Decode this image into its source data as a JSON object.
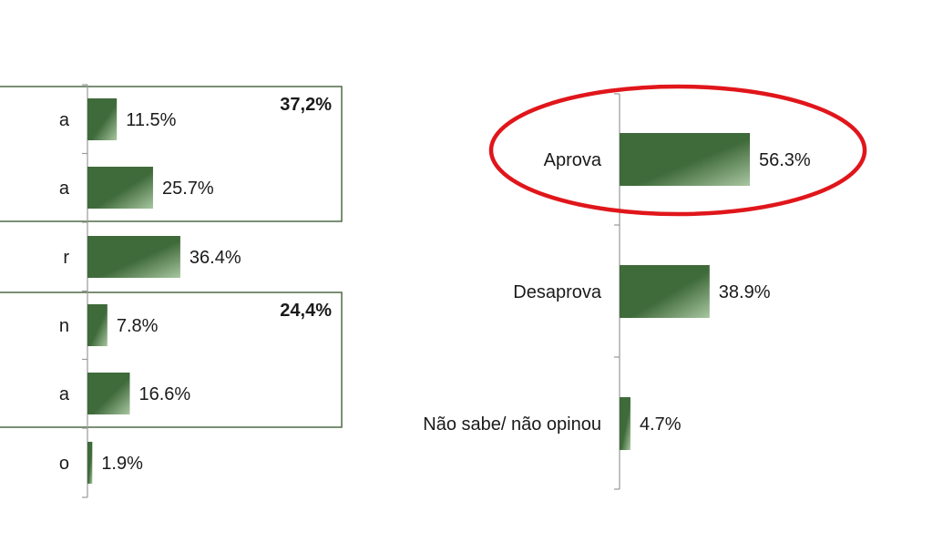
{
  "colors": {
    "bar_dark": "#3f6a3a",
    "bar_light": "#a9c6a1",
    "axis": "#9a9a9a",
    "group_border": "#4e6a46",
    "highlight_ellipse": "#e0161b",
    "text": "#1a1a1a"
  },
  "chart_data": [
    {
      "type": "bar",
      "orientation": "horizontal",
      "categories": [
        "a",
        "a",
        "r",
        "n",
        "a",
        "o"
      ],
      "values": [
        11.5,
        25.7,
        36.4,
        7.8,
        16.6,
        1.9
      ],
      "value_labels": [
        "11.5%",
        "25.7%",
        "36.4%",
        "7.8%",
        "16.6%",
        "1.9%"
      ],
      "groups": [
        {
          "label": "37,2%",
          "members": [
            0,
            1
          ]
        },
        {
          "label": "24,4%",
          "members": [
            3,
            4
          ]
        }
      ]
    },
    {
      "type": "bar",
      "orientation": "horizontal",
      "categories": [
        "Aprova",
        "Desaprova",
        "Não sabe/ não opinou"
      ],
      "values": [
        56.3,
        38.9,
        4.7
      ],
      "value_labels": [
        "56.3%",
        "38.9%",
        "4.7%"
      ],
      "highlighted": "Aprova"
    }
  ]
}
